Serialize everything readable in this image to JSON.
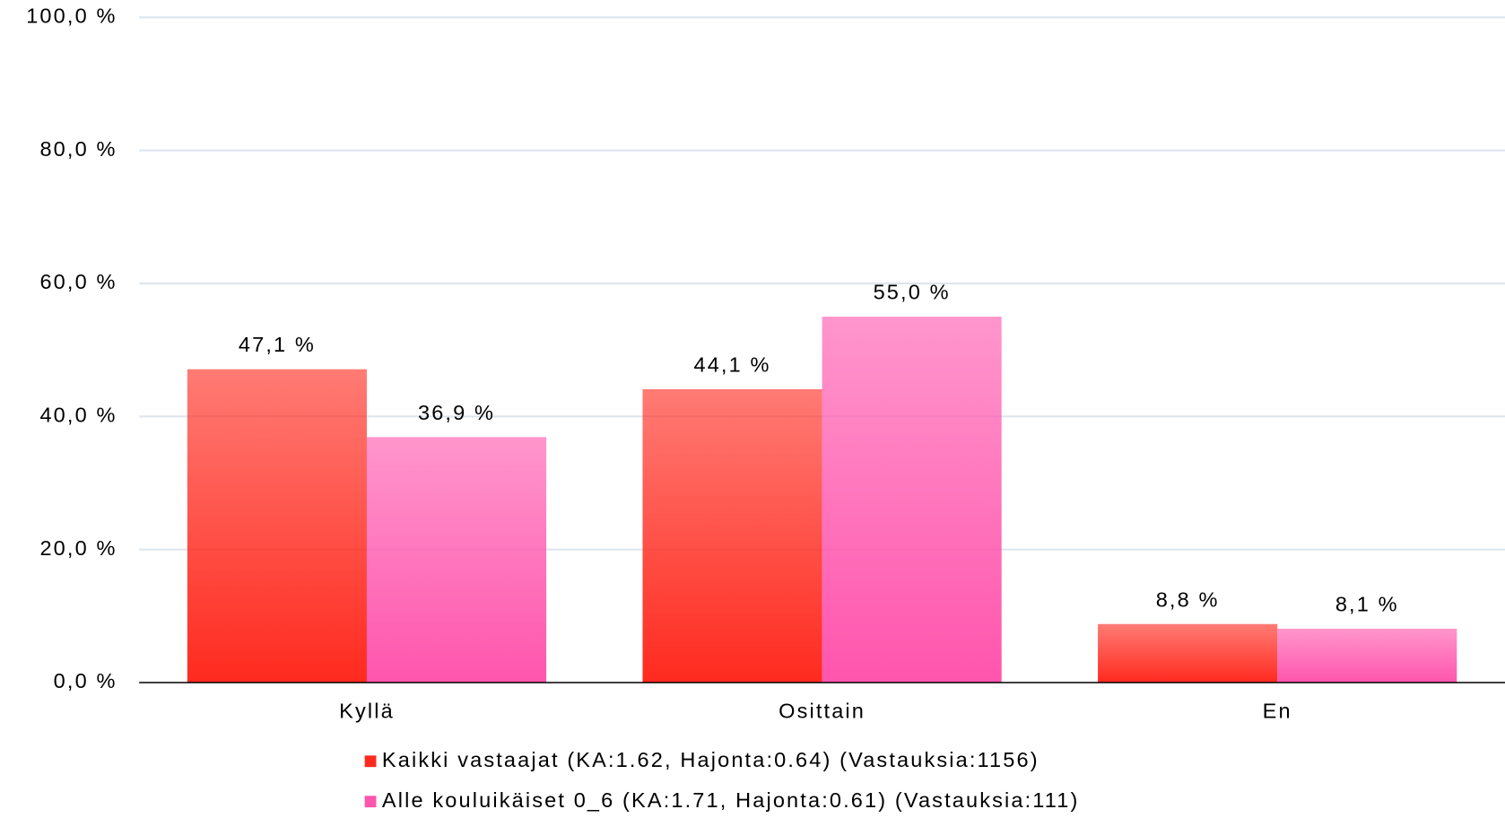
{
  "chart_data": {
    "type": "bar",
    "categories": [
      "Kyllä",
      "Osittain",
      "En"
    ],
    "series": [
      {
        "name": "Kaikki vastaajat (KA:1.62, Hajonta:0.64) (Vastauksia:1156)",
        "color": "#ff2a1f",
        "values": [
          47.1,
          44.1,
          8.8
        ],
        "value_labels": [
          "47,1 %",
          "44,1 %",
          "8,8 %"
        ]
      },
      {
        "name": "Alle kouluikäiset 0_6 (KA:1.71, Hajonta:0.61) (Vastauksia:111)",
        "color": "#ff55ad",
        "values": [
          36.9,
          55.0,
          8.1
        ],
        "value_labels": [
          "36,9 %",
          "55,0 %",
          "8,1 %"
        ]
      }
    ],
    "ylim": [
      0,
      100
    ],
    "yticks": [
      {
        "value": 0,
        "label": "0,0 %"
      },
      {
        "value": 20,
        "label": "20,0 %"
      },
      {
        "value": 40,
        "label": "40,0 %"
      },
      {
        "value": 60,
        "label": "60,0 %"
      },
      {
        "value": 80,
        "label": "80,0 %"
      },
      {
        "value": 100,
        "label": "100,0 %"
      }
    ],
    "grid": true,
    "legend": "bottom"
  }
}
